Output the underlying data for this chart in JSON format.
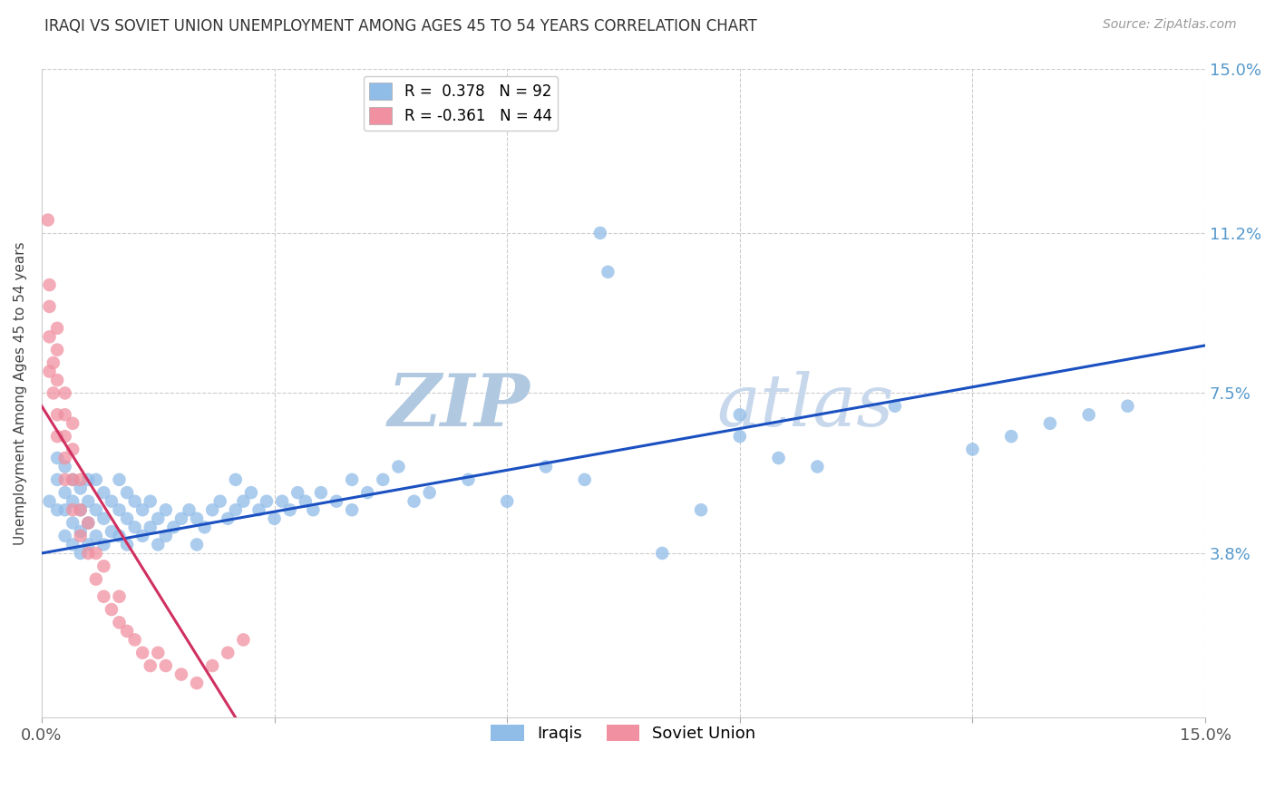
{
  "title": "IRAQI VS SOVIET UNION UNEMPLOYMENT AMONG AGES 45 TO 54 YEARS CORRELATION CHART",
  "source": "Source: ZipAtlas.com",
  "ylabel": "Unemployment Among Ages 45 to 54 years",
  "xlim": [
    0,
    0.15
  ],
  "ylim": [
    0,
    0.15
  ],
  "ytick_positions": [
    0.038,
    0.075,
    0.112,
    0.15
  ],
  "ytick_labels": [
    "3.8%",
    "7.5%",
    "11.2%",
    "15.0%"
  ],
  "xtick_positions": [
    0.0,
    0.03,
    0.06,
    0.09,
    0.12,
    0.15
  ],
  "xtick_labels": [
    "0.0%",
    "",
    "",
    "",
    "",
    "15.0%"
  ],
  "legend_line1": "R =  0.378   N = 92",
  "legend_line2": "R = -0.361   N = 44",
  "iraqis_color": "#90bce8",
  "soviet_color": "#f090a0",
  "iraqis_line_color": "#1a50c0",
  "soviet_line_color": "#d03060",
  "watermark_zip": "ZIP",
  "watermark_atlas": "atlas",
  "watermark_color_zip": "#b0c8e0",
  "watermark_color_atlas": "#c8d8ec",
  "iraqis_N": 92,
  "soviet_N": 44,
  "blue_line_x0": 0.0,
  "blue_line_y0": 0.038,
  "blue_line_x1": 0.15,
  "blue_line_y1": 0.086,
  "pink_line_x0": 0.0,
  "pink_line_y0": 0.072,
  "pink_line_x1": 0.025,
  "pink_line_y1": 0.0,
  "iraqis_x": [
    0.001,
    0.002,
    0.002,
    0.002,
    0.003,
    0.003,
    0.003,
    0.003,
    0.004,
    0.004,
    0.004,
    0.004,
    0.005,
    0.005,
    0.005,
    0.005,
    0.006,
    0.006,
    0.006,
    0.006,
    0.007,
    0.007,
    0.007,
    0.008,
    0.008,
    0.008,
    0.009,
    0.009,
    0.01,
    0.01,
    0.01,
    0.011,
    0.011,
    0.011,
    0.012,
    0.012,
    0.013,
    0.013,
    0.014,
    0.014,
    0.015,
    0.015,
    0.016,
    0.016,
    0.017,
    0.018,
    0.019,
    0.02,
    0.02,
    0.021,
    0.022,
    0.023,
    0.024,
    0.025,
    0.025,
    0.026,
    0.027,
    0.028,
    0.029,
    0.03,
    0.031,
    0.032,
    0.033,
    0.034,
    0.035,
    0.036,
    0.038,
    0.04,
    0.04,
    0.042,
    0.044,
    0.046,
    0.048,
    0.05,
    0.055,
    0.06,
    0.065,
    0.07,
    0.08,
    0.085,
    0.09,
    0.09,
    0.095,
    0.1,
    0.11,
    0.12,
    0.125,
    0.13,
    0.135,
    0.14,
    0.072,
    0.073
  ],
  "iraqis_y": [
    0.05,
    0.048,
    0.055,
    0.06,
    0.042,
    0.048,
    0.052,
    0.058,
    0.04,
    0.045,
    0.05,
    0.055,
    0.038,
    0.043,
    0.048,
    0.053,
    0.04,
    0.045,
    0.05,
    0.055,
    0.042,
    0.048,
    0.055,
    0.04,
    0.046,
    0.052,
    0.043,
    0.05,
    0.042,
    0.048,
    0.055,
    0.04,
    0.046,
    0.052,
    0.044,
    0.05,
    0.042,
    0.048,
    0.044,
    0.05,
    0.04,
    0.046,
    0.042,
    0.048,
    0.044,
    0.046,
    0.048,
    0.04,
    0.046,
    0.044,
    0.048,
    0.05,
    0.046,
    0.048,
    0.055,
    0.05,
    0.052,
    0.048,
    0.05,
    0.046,
    0.05,
    0.048,
    0.052,
    0.05,
    0.048,
    0.052,
    0.05,
    0.048,
    0.055,
    0.052,
    0.055,
    0.058,
    0.05,
    0.052,
    0.055,
    0.05,
    0.058,
    0.055,
    0.038,
    0.048,
    0.065,
    0.07,
    0.06,
    0.058,
    0.072,
    0.062,
    0.065,
    0.068,
    0.07,
    0.072,
    0.112,
    0.103
  ],
  "soviet_x": [
    0.0008,
    0.001,
    0.001,
    0.001,
    0.001,
    0.0015,
    0.0015,
    0.002,
    0.002,
    0.002,
    0.002,
    0.002,
    0.003,
    0.003,
    0.003,
    0.003,
    0.003,
    0.004,
    0.004,
    0.004,
    0.004,
    0.005,
    0.005,
    0.005,
    0.006,
    0.006,
    0.007,
    0.007,
    0.008,
    0.008,
    0.009,
    0.01,
    0.01,
    0.011,
    0.012,
    0.013,
    0.014,
    0.015,
    0.016,
    0.018,
    0.02,
    0.022,
    0.024,
    0.026
  ],
  "soviet_y": [
    0.115,
    0.08,
    0.088,
    0.095,
    0.1,
    0.075,
    0.082,
    0.065,
    0.07,
    0.078,
    0.085,
    0.09,
    0.055,
    0.06,
    0.065,
    0.07,
    0.075,
    0.048,
    0.055,
    0.062,
    0.068,
    0.042,
    0.048,
    0.055,
    0.038,
    0.045,
    0.032,
    0.038,
    0.028,
    0.035,
    0.025,
    0.022,
    0.028,
    0.02,
    0.018,
    0.015,
    0.012,
    0.015,
    0.012,
    0.01,
    0.008,
    0.012,
    0.015,
    0.018
  ]
}
